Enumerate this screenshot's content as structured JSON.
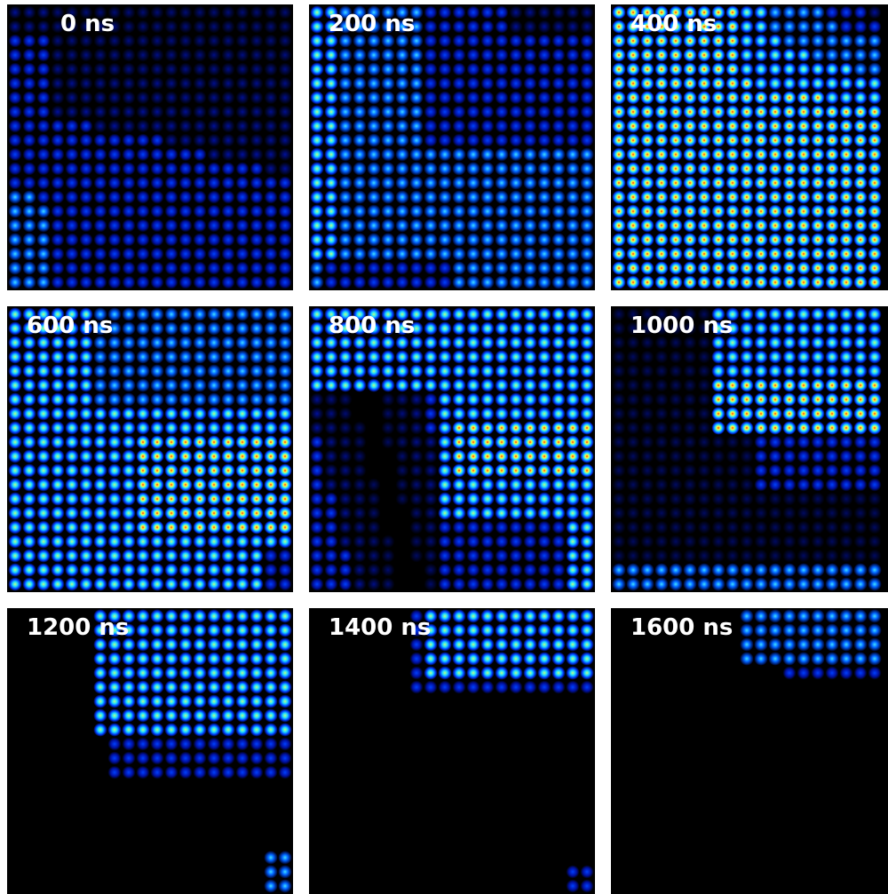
{
  "panels": [
    {
      "label": "0 ns"
    },
    {
      "label": "200 ns"
    },
    {
      "label": "400 ns"
    },
    {
      "label": "600 ns"
    },
    {
      "label": "800 ns"
    },
    {
      "label": "1000 ns"
    },
    {
      "label": "1200 ns"
    },
    {
      "label": "1400 ns"
    },
    {
      "label": "1600 ns"
    }
  ]
}
